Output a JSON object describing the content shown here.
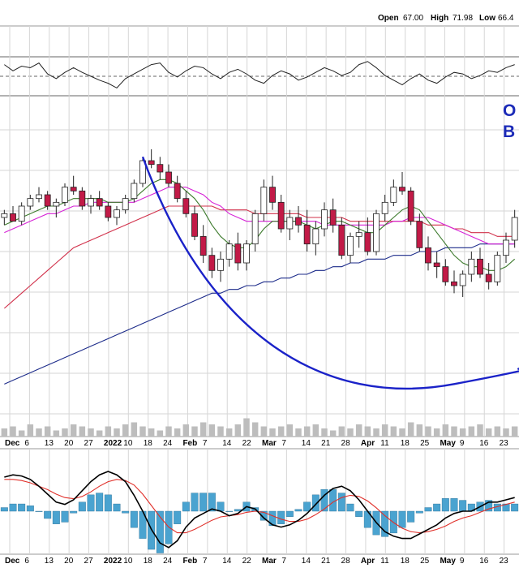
{
  "header": {
    "open_label": "Open",
    "open_value": "67.00",
    "high_label": "High",
    "high_value": "71.98",
    "low_label": "Low",
    "low_value": "66.4"
  },
  "annotation": {
    "line1": "O",
    "line2": "B"
  },
  "x_ticks": [
    "Dec",
    "6",
    "13",
    "20",
    "27",
    "2022",
    "10",
    "18",
    "24",
    "Feb",
    "7",
    "14",
    "22",
    "Mar",
    "7",
    "14",
    "21",
    "28",
    "Apr",
    "11",
    "18",
    "25",
    "May",
    "9",
    "16",
    "23"
  ],
  "x_ticks_bold": [
    "Dec",
    "2022",
    "Feb",
    "Mar",
    "Apr",
    "May"
  ],
  "colors": {
    "up_candle": "#ffffff",
    "down_candle": "#c21a47",
    "candle_border": "#222222",
    "ma_fast": "#3c7a2c",
    "ma_mid": "#d622d6",
    "ma_slow": "#d1304a",
    "ma_long": "#1c2b8a",
    "cup_curve": "#1a22c8",
    "macd": "#000000",
    "signal": "#e0302a",
    "histogram": "#4aa3d0",
    "rsi": "#222222",
    "volume": "#bdbdbd"
  },
  "chart_data": [
    {
      "type": "line",
      "panel": "oscillator",
      "series": [
        {
          "values": [
            70,
            62,
            68,
            66,
            72,
            58,
            52,
            60,
            66,
            60,
            55,
            50,
            46,
            40,
            52,
            58,
            64,
            70,
            72,
            60,
            54,
            62,
            68,
            66,
            58,
            52,
            60,
            64,
            58,
            50,
            46,
            56,
            62,
            58,
            50,
            54,
            60,
            66,
            62,
            56,
            60,
            70,
            74,
            66,
            56,
            50,
            44,
            52,
            58,
            50,
            46,
            54,
            60,
            58,
            52,
            56,
            62,
            60,
            66,
            70
          ]
        }
      ]
    },
    {
      "type": "bar",
      "panel": "price",
      "description_type": "candlestick",
      "x_labels": [
        "Dec",
        "6",
        "13",
        "20",
        "27",
        "2022",
        "10",
        "18",
        "24",
        "Feb",
        "7",
        "14",
        "22",
        "Mar",
        "7",
        "14",
        "21",
        "28",
        "Apr",
        "11",
        "18",
        "25",
        "May",
        "9",
        "16",
        "23"
      ],
      "candles": [
        [
          64,
          66,
          62,
          65
        ],
        [
          65,
          67,
          63,
          63
        ],
        [
          63,
          68,
          62,
          67
        ],
        [
          67,
          70,
          66,
          69
        ],
        [
          69,
          72,
          68,
          70
        ],
        [
          70,
          71,
          66,
          67
        ],
        [
          67,
          69,
          64,
          68
        ],
        [
          68,
          73,
          67,
          72
        ],
        [
          72,
          75,
          70,
          71
        ],
        [
          71,
          72,
          66,
          67
        ],
        [
          67,
          70,
          65,
          69
        ],
        [
          69,
          71,
          66,
          67
        ],
        [
          67,
          68,
          63,
          64
        ],
        [
          64,
          67,
          62,
          66
        ],
        [
          66,
          70,
          65,
          69
        ],
        [
          69,
          74,
          68,
          73
        ],
        [
          73,
          80,
          72,
          79
        ],
        [
          79,
          82,
          77,
          78
        ],
        [
          78,
          80,
          74,
          76
        ],
        [
          76,
          78,
          72,
          73
        ],
        [
          73,
          75,
          68,
          69
        ],
        [
          69,
          71,
          64,
          65
        ],
        [
          65,
          67,
          58,
          59
        ],
        [
          59,
          62,
          52,
          54
        ],
        [
          54,
          56,
          48,
          50
        ],
        [
          50,
          55,
          47,
          53
        ],
        [
          53,
          58,
          51,
          57
        ],
        [
          57,
          60,
          50,
          52
        ],
        [
          52,
          58,
          50,
          57
        ],
        [
          57,
          66,
          55,
          65
        ],
        [
          65,
          74,
          63,
          72
        ],
        [
          72,
          75,
          66,
          68
        ],
        [
          68,
          70,
          60,
          61
        ],
        [
          61,
          66,
          58,
          64
        ],
        [
          64,
          67,
          60,
          62
        ],
        [
          62,
          66,
          55,
          57
        ],
        [
          57,
          63,
          54,
          61
        ],
        [
          61,
          68,
          59,
          66
        ],
        [
          66,
          69,
          60,
          62
        ],
        [
          62,
          64,
          53,
          54
        ],
        [
          54,
          60,
          52,
          59
        ],
        [
          59,
          63,
          56,
          60
        ],
        [
          60,
          64,
          54,
          55
        ],
        [
          55,
          66,
          54,
          65
        ],
        [
          65,
          70,
          63,
          68
        ],
        [
          68,
          74,
          67,
          72
        ],
        [
          72,
          76,
          70,
          71
        ],
        [
          71,
          72,
          62,
          63
        ],
        [
          63,
          65,
          55,
          56
        ],
        [
          56,
          59,
          50,
          52
        ],
        [
          52,
          55,
          48,
          51
        ],
        [
          51,
          53,
          46,
          47
        ],
        [
          47,
          50,
          44,
          46
        ],
        [
          46,
          50,
          43,
          49
        ],
        [
          49,
          55,
          47,
          53
        ],
        [
          53,
          56,
          48,
          49
        ],
        [
          49,
          52,
          45,
          47
        ],
        [
          47,
          55,
          46,
          54
        ],
        [
          54,
          60,
          52,
          58
        ],
        [
          58,
          66,
          56,
          64
        ]
      ],
      "moving_averages": {
        "fast": [
          62,
          63,
          64,
          65,
          66,
          67,
          67,
          68,
          69,
          69,
          69,
          69,
          68,
          68,
          68,
          69,
          71,
          73,
          74,
          74,
          73,
          71,
          69,
          66,
          62,
          59,
          57,
          56,
          56,
          58,
          61,
          63,
          63,
          63,
          63,
          62,
          61,
          62,
          63,
          63,
          62,
          61,
          60,
          60,
          62,
          64,
          66,
          67,
          66,
          63,
          60,
          57,
          54,
          52,
          51,
          51,
          50,
          50,
          51,
          53
        ],
        "mid": [
          60,
          61,
          62,
          63,
          64,
          65,
          65,
          66,
          67,
          67,
          68,
          68,
          68,
          68,
          68,
          68,
          69,
          70,
          71,
          72,
          72,
          72,
          71,
          70,
          68,
          67,
          65,
          64,
          63,
          63,
          63,
          63,
          63,
          63,
          63,
          63,
          63,
          62,
          62,
          62,
          62,
          62,
          62,
          62,
          62,
          63,
          63,
          64,
          64,
          64,
          63,
          62,
          61,
          60,
          59,
          58,
          57,
          57,
          57,
          57
        ],
        "slow": [
          40,
          42,
          44,
          46,
          48,
          50,
          52,
          54,
          56,
          57,
          58,
          59,
          60,
          61,
          62,
          63,
          64,
          65,
          66,
          67,
          67,
          67,
          67,
          67,
          67,
          66,
          66,
          66,
          66,
          65,
          65,
          65,
          65,
          65,
          65,
          64,
          64,
          64,
          64,
          64,
          63,
          63,
          63,
          63,
          63,
          63,
          63,
          63,
          63,
          62,
          62,
          62,
          61,
          61,
          60,
          60,
          60,
          59,
          59,
          59
        ],
        "long": [
          20,
          21,
          22,
          23,
          24,
          25,
          26,
          27,
          28,
          29,
          30,
          31,
          32,
          33,
          34,
          35,
          36,
          37,
          38,
          39,
          40,
          41,
          42,
          43,
          44,
          44,
          45,
          45,
          46,
          46,
          47,
          47,
          48,
          48,
          49,
          49,
          50,
          50,
          51,
          51,
          52,
          52,
          53,
          53,
          53,
          54,
          54,
          54,
          55,
          55,
          55,
          56,
          56,
          56,
          56,
          57,
          57,
          57,
          57,
          57
        ]
      }
    },
    {
      "type": "bar",
      "panel": "volume",
      "values": [
        4,
        5,
        3,
        6,
        4,
        5,
        3,
        4,
        6,
        5,
        4,
        3,
        5,
        4,
        6,
        7,
        5,
        4,
        3,
        5,
        4,
        6,
        5,
        7,
        6,
        5,
        4,
        6,
        9,
        7,
        5,
        4,
        5,
        6,
        4,
        5,
        6,
        4,
        3,
        5,
        4,
        6,
        5,
        4,
        6,
        5,
        4,
        7,
        6,
        5,
        4,
        6,
        5,
        4,
        5,
        6,
        4,
        5,
        4,
        5
      ]
    },
    {
      "type": "line",
      "panel": "macd",
      "series": [
        {
          "values": [
            3,
            3.2,
            3.1,
            2.8,
            2.2,
            1.5,
            0.8,
            0.6,
            1,
            1.8,
            2.6,
            3.2,
            3.5,
            3.2,
            2.6,
            1.4,
            0,
            -1.6,
            -2.8,
            -3.2,
            -2.6,
            -1.4,
            -0.6,
            -0.2,
            0.2,
            0,
            -0.4,
            -0.2,
            0.4,
            0.2,
            -0.6,
            -1.2,
            -1.4,
            -1.2,
            -0.8,
            -0.2,
            0.6,
            1.4,
            2,
            2.2,
            1.8,
            1,
            0,
            -1,
            -1.8,
            -2.2,
            -2.4,
            -2.4,
            -2,
            -1.6,
            -1.2,
            -0.6,
            -0.2,
            0,
            0,
            0.4,
            0.8,
            0.8,
            1,
            1.2
          ]
        },
        {
          "values": [
            2.8,
            2.8,
            2.7,
            2.5,
            2.2,
            1.9,
            1.5,
            1.2,
            1.1,
            1.3,
            1.7,
            2.2,
            2.6,
            2.8,
            2.7,
            2.3,
            1.5,
            0.5,
            -0.5,
            -1.4,
            -1.9,
            -1.9,
            -1.6,
            -1.2,
            -0.8,
            -0.5,
            -0.4,
            -0.3,
            -0.1,
            0,
            -0.1,
            -0.4,
            -0.7,
            -0.9,
            -0.9,
            -0.7,
            -0.3,
            0.2,
            0.8,
            1.2,
            1.4,
            1.3,
            0.9,
            0.3,
            -0.4,
            -1,
            -1.5,
            -1.8,
            -1.9,
            -1.8,
            -1.6,
            -1.3,
            -0.9,
            -0.6,
            -0.4,
            -0.1,
            0.2,
            0.4,
            0.6,
            0.8
          ]
        }
      ]
    }
  ]
}
